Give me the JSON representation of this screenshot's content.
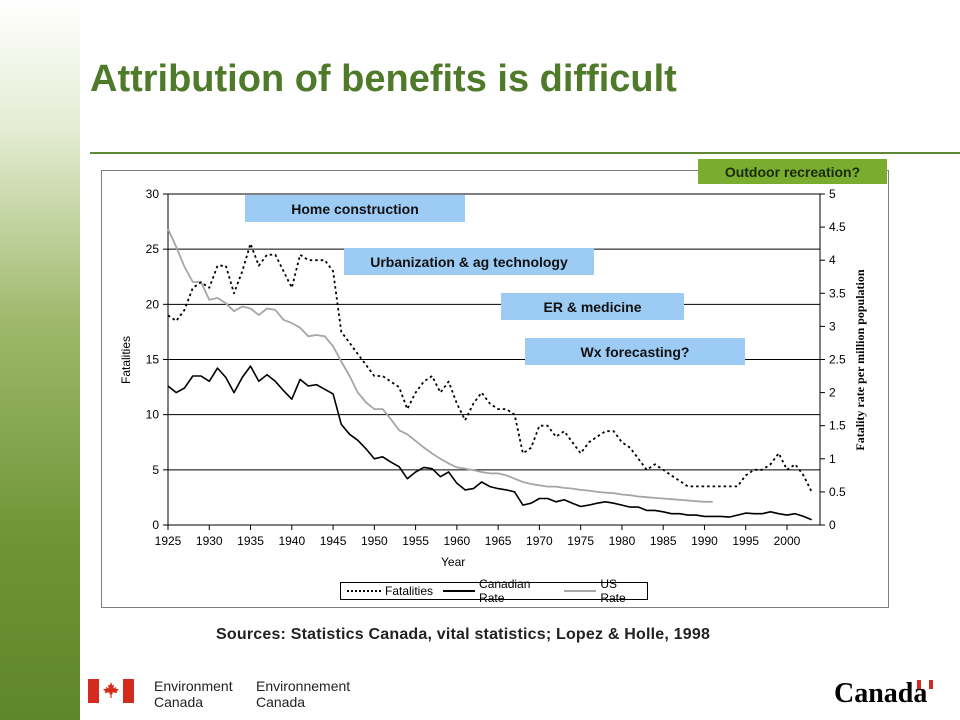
{
  "header": {
    "title": "Attribution of benefits is difficult"
  },
  "annotations": {
    "home_construction": "Home construction",
    "urbanization": "Urbanization & ag technology",
    "er_medicine": "ER & medicine",
    "wx_forecasting": "Wx forecasting?",
    "outdoor_recreation": "Outdoor recreation?"
  },
  "sources": "Sources: Statistics Canada, vital statistics; Lopez & Holle, 1998",
  "footer": {
    "dept_en": [
      "Environment",
      "Canada"
    ],
    "dept_fr": [
      "Environnement",
      "Canada"
    ],
    "wordmark": "Canada"
  },
  "colors": {
    "title": "#4e7a2a",
    "annotation_blue": "#9ccbf4",
    "annotation_green": "#7aac30",
    "us_rate": "#a6a6a6"
  },
  "chart_data": {
    "type": "line",
    "xlabel": "Year",
    "ylabel_left": "Fatalities",
    "ylabel_right": "Fatality rate per million population",
    "xlim": [
      1925,
      2004
    ],
    "ylim_left": [
      0,
      30
    ],
    "ylim_right": [
      0,
      5
    ],
    "x_ticks": [
      1925,
      1930,
      1935,
      1940,
      1945,
      1950,
      1955,
      1960,
      1965,
      1970,
      1975,
      1980,
      1985,
      1990,
      1995,
      2000
    ],
    "y_ticks_left": [
      0,
      5,
      10,
      15,
      20,
      25,
      30
    ],
    "y_ticks_right": [
      "0",
      "0.5",
      "1",
      "1.5",
      "2",
      "2.5",
      "3",
      "3.5",
      "4",
      "4.5",
      "5"
    ],
    "grid": "horizontal",
    "legend_position": "bottom",
    "series": [
      {
        "name": "Fatalities",
        "axis": "left",
        "style": "dotted",
        "color": "#000000",
        "x": [
          1925,
          1926,
          1927,
          1928,
          1929,
          1930,
          1931,
          1932,
          1933,
          1934,
          1935,
          1936,
          1937,
          1938,
          1939,
          1940,
          1941,
          1942,
          1943,
          1944,
          1945,
          1946,
          1947,
          1948,
          1949,
          1950,
          1951,
          1952,
          1953,
          1954,
          1955,
          1956,
          1957,
          1958,
          1959,
          1960,
          1961,
          1962,
          1963,
          1964,
          1965,
          1966,
          1967,
          1968,
          1969,
          1970,
          1971,
          1972,
          1973,
          1974,
          1975,
          1976,
          1977,
          1978,
          1979,
          1980,
          1981,
          1982,
          1983,
          1984,
          1985,
          1986,
          1987,
          1988,
          1989,
          1990,
          1991,
          1992,
          1993,
          1994,
          1995,
          1996,
          1997,
          1998,
          1999,
          2000,
          2001,
          2002,
          2003
        ],
        "values": [
          19,
          18.5,
          19.5,
          21.5,
          22,
          21.5,
          23.5,
          23.5,
          21,
          23,
          25.5,
          23.5,
          24.5,
          24.5,
          23,
          21.5,
          24.5,
          24,
          24,
          24,
          23,
          17.5,
          16.5,
          15.5,
          14.5,
          13.5,
          13.5,
          13,
          12.5,
          10.5,
          12,
          13,
          13.5,
          12,
          13,
          11,
          9.5,
          11,
          12,
          11,
          10.5,
          10.5,
          10,
          6.5,
          7,
          9,
          9,
          8,
          8.5,
          7.5,
          6.5,
          7.5,
          8,
          8.5,
          8.5,
          7.5,
          7,
          6,
          5,
          5.5,
          5,
          4.5,
          4,
          3.5,
          3.5,
          3.5,
          3.5,
          3.5,
          3.5,
          3.5,
          4.5,
          5,
          5,
          5.5,
          6.5,
          5,
          5.5,
          4.5,
          3
        ]
      },
      {
        "name": "Canadian Rate",
        "axis": "right",
        "style": "solid",
        "color": "#000000",
        "x": [
          1925,
          1926,
          1927,
          1928,
          1929,
          1930,
          1931,
          1932,
          1933,
          1934,
          1935,
          1936,
          1937,
          1938,
          1939,
          1940,
          1941,
          1942,
          1943,
          1944,
          1945,
          1946,
          1947,
          1948,
          1949,
          1950,
          1951,
          1952,
          1953,
          1954,
          1955,
          1956,
          1957,
          1958,
          1959,
          1960,
          1961,
          1962,
          1963,
          1964,
          1965,
          1966,
          1967,
          1968,
          1969,
          1970,
          1971,
          1972,
          1973,
          1974,
          1975,
          1976,
          1977,
          1978,
          1979,
          1980,
          1981,
          1982,
          1983,
          1984,
          1985,
          1986,
          1987,
          1988,
          1989,
          1990,
          1991,
          1992,
          1993,
          1994,
          1995,
          1996,
          1997,
          1998,
          1999,
          2000,
          2001,
          2002,
          2003
        ],
        "values": [
          2.1,
          2.0,
          2.07,
          2.25,
          2.25,
          2.17,
          2.37,
          2.23,
          2.0,
          2.23,
          2.4,
          2.17,
          2.27,
          2.17,
          2.03,
          1.9,
          2.2,
          2.1,
          2.12,
          2.05,
          1.98,
          1.52,
          1.37,
          1.28,
          1.15,
          1.0,
          1.03,
          0.95,
          0.88,
          0.7,
          0.8,
          0.87,
          0.85,
          0.73,
          0.8,
          0.63,
          0.53,
          0.55,
          0.65,
          0.58,
          0.55,
          0.53,
          0.5,
          0.3,
          0.33,
          0.4,
          0.4,
          0.35,
          0.38,
          0.33,
          0.28,
          0.3,
          0.33,
          0.35,
          0.33,
          0.3,
          0.27,
          0.27,
          0.22,
          0.22,
          0.2,
          0.17,
          0.17,
          0.15,
          0.15,
          0.13,
          0.13,
          0.13,
          0.12,
          0.15,
          0.18,
          0.17,
          0.17,
          0.2,
          0.17,
          0.15,
          0.17,
          0.13,
          0.08
        ]
      },
      {
        "name": "US Rate",
        "axis": "right",
        "style": "solid",
        "color": "#a6a6a6",
        "x": [
          1925,
          1926,
          1927,
          1928,
          1929,
          1930,
          1931,
          1932,
          1933,
          1934,
          1935,
          1936,
          1937,
          1938,
          1939,
          1940,
          1941,
          1942,
          1943,
          1944,
          1945,
          1946,
          1947,
          1948,
          1949,
          1950,
          1951,
          1952,
          1953,
          1954,
          1955,
          1956,
          1957,
          1958,
          1959,
          1960,
          1961,
          1962,
          1963,
          1964,
          1965,
          1966,
          1967,
          1968,
          1969,
          1970,
          1971,
          1972,
          1973,
          1974,
          1975,
          1976,
          1977,
          1978,
          1979,
          1980,
          1981,
          1982,
          1983,
          1984,
          1985,
          1986,
          1987,
          1988,
          1989,
          1990,
          1991
        ],
        "values": [
          4.47,
          4.2,
          3.9,
          3.67,
          3.67,
          3.4,
          3.43,
          3.35,
          3.23,
          3.3,
          3.27,
          3.17,
          3.27,
          3.25,
          3.1,
          3.05,
          2.98,
          2.85,
          2.87,
          2.85,
          2.7,
          2.47,
          2.25,
          2.0,
          1.85,
          1.75,
          1.75,
          1.6,
          1.43,
          1.37,
          1.27,
          1.17,
          1.08,
          1.0,
          0.93,
          0.87,
          0.85,
          0.83,
          0.8,
          0.78,
          0.78,
          0.75,
          0.7,
          0.65,
          0.62,
          0.6,
          0.58,
          0.58,
          0.56,
          0.55,
          0.53,
          0.52,
          0.5,
          0.49,
          0.48,
          0.46,
          0.45,
          0.43,
          0.42,
          0.41,
          0.4,
          0.39,
          0.38,
          0.37,
          0.36,
          0.35,
          0.35
        ]
      }
    ]
  }
}
